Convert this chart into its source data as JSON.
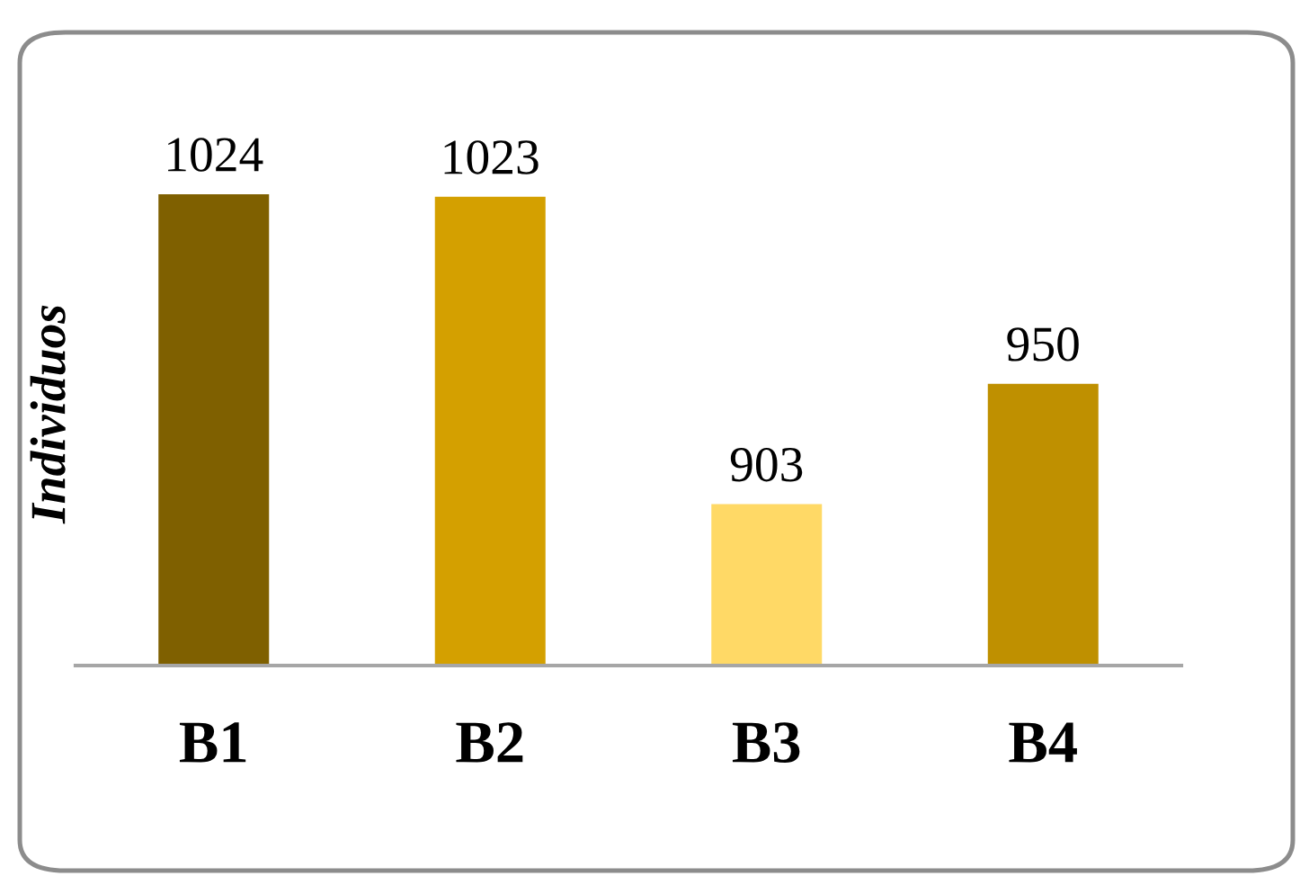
{
  "chart_data": {
    "type": "bar",
    "ylabel": "Individuos",
    "categories": [
      "B1",
      "B2",
      "B3",
      "B4"
    ],
    "values": [
      1024,
      1023,
      903,
      950
    ],
    "colors": [
      "#7f6000",
      "#d4a000",
      "#ffd966",
      "#bf9000"
    ],
    "ylim": [
      840,
      1024
    ],
    "tick_labels": "x",
    "data_labels": true
  }
}
